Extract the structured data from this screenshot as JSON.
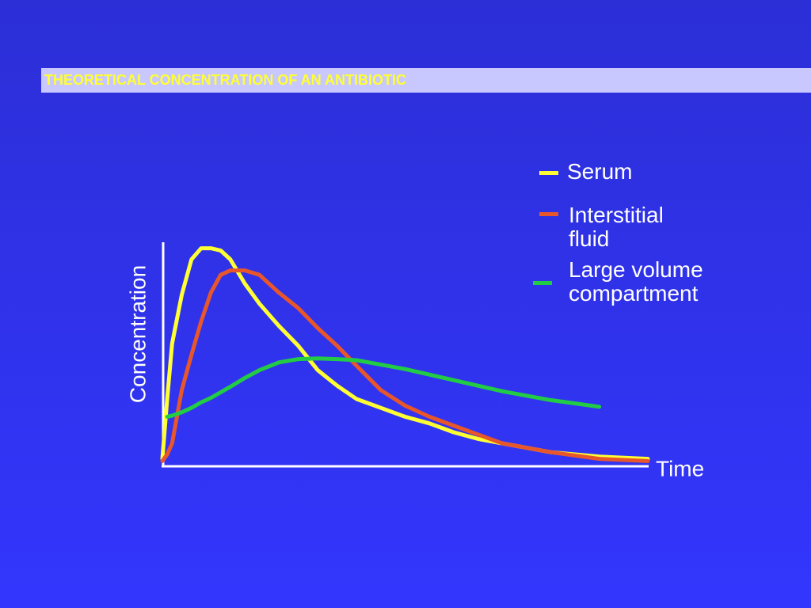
{
  "chart_data": {
    "type": "line",
    "title": "THEORETICAL CONCENTRATION OF AN ANTIBIOTIC",
    "y_label": "Concentration",
    "x_label": "Time",
    "x": [
      0,
      1,
      2,
      4,
      6,
      8,
      10,
      12,
      14,
      17,
      20,
      24,
      28,
      32,
      36,
      40,
      45,
      50,
      55,
      60,
      65,
      70,
      80,
      90,
      100
    ],
    "xlim": [
      0,
      100
    ],
    "ylim": [
      0,
      100
    ],
    "series": [
      {
        "name": "Serum",
        "color": "#ffff33",
        "values": [
          3,
          30,
          55,
          77,
          93,
          98,
          98,
          97,
          93,
          82,
          73,
          63,
          54,
          43,
          36,
          30,
          26,
          22,
          19,
          15,
          12,
          10,
          6,
          4,
          3
        ]
      },
      {
        "name": "Interstitial fluid",
        "color": "#e8572a",
        "values": [
          2,
          5,
          10,
          34,
          50,
          65,
          78,
          86,
          88,
          88,
          86,
          78,
          71,
          62,
          54,
          45,
          34,
          27,
          22,
          18,
          14,
          10,
          6,
          3,
          2
        ]
      },
      {
        "name": "Large volume compartment",
        "color": "#22cc44",
        "values": [
          null,
          22,
          22.5,
          24,
          26,
          28.5,
          30.5,
          33,
          35.5,
          39.5,
          43,
          46.5,
          48,
          48.3,
          48,
          47.5,
          45.5,
          43.5,
          41,
          38.5,
          36,
          33.5,
          29.5,
          26.5,
          null
        ]
      }
    ]
  }
}
